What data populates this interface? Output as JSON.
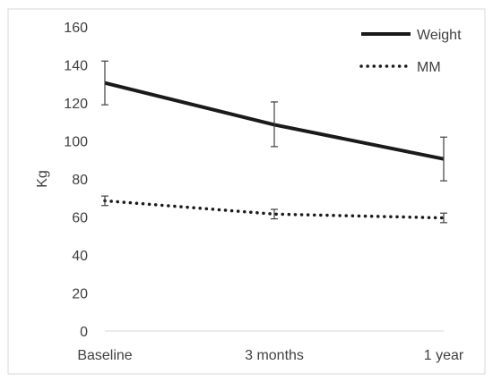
{
  "chart_data": {
    "type": "line",
    "title": "",
    "xlabel": "",
    "ylabel": "Kg",
    "categories": [
      "Baseline",
      "3 months",
      "1 year"
    ],
    "ylim": [
      0,
      160
    ],
    "yticks": [
      0,
      20,
      40,
      60,
      80,
      100,
      120,
      140,
      160
    ],
    "grid": false,
    "legend_position": "top-right",
    "series": [
      {
        "name": "Weight",
        "style": "solid",
        "color": "#1a1a1a",
        "values": [
          130.5,
          108.5,
          90.5
        ],
        "error_low": [
          119,
          97,
          79
        ],
        "error_high": [
          142,
          120.5,
          102
        ]
      },
      {
        "name": "MM",
        "style": "dotted",
        "color": "#1a1a1a",
        "values": [
          68.5,
          61.5,
          59.5
        ],
        "error_low": [
          66,
          59,
          57
        ],
        "error_high": [
          71,
          64,
          62
        ]
      }
    ]
  }
}
